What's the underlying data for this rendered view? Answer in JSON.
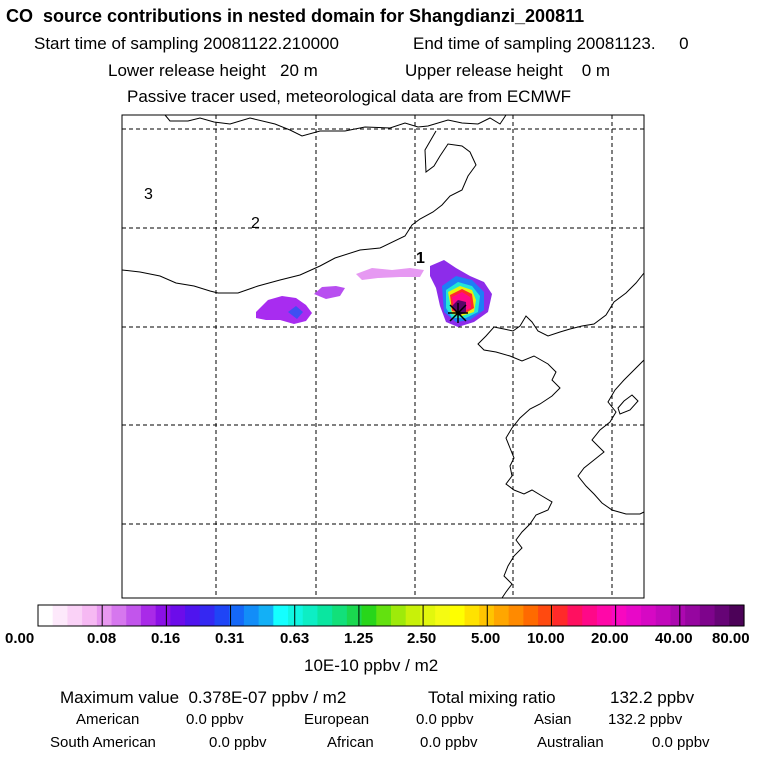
{
  "header": {
    "title": "CO  source contributions in nested domain for Shangdianzi_200811",
    "start_label": "Start time of sampling 20081122.210000",
    "end_label": "End time of sampling 20081123.     0",
    "lower_label": "Lower release height   20 m",
    "upper_label": "Upper release height    0 m",
    "tracer_note": "Passive tracer used, meteorological data are from ECMWF"
  },
  "map": {
    "region_labels": [
      "3",
      "2",
      "1"
    ]
  },
  "colorbar": {
    "tick_labels": [
      "0.00",
      "0.08",
      "0.16",
      "0.31",
      "0.63",
      "1.25",
      "2.50",
      "5.00",
      "10.00",
      "20.00",
      "40.00",
      "80.00"
    ],
    "colors": [
      "#ffffff",
      "#fde9fb",
      "#fad2f7",
      "#f6b9f3",
      "#e898f0",
      "#d677ee",
      "#c255ec",
      "#a92ae8",
      "#8b10e6",
      "#6c0cea",
      "#4f14ee",
      "#3528f2",
      "#1f45f6",
      "#1568f8",
      "#128df8",
      "#13b0f6",
      "#14ffff",
      "#10f6e2",
      "#0deec4",
      "#0ae6a0",
      "#12e07a",
      "#1ad84f",
      "#28d61a",
      "#63e10f",
      "#9eea0a",
      "#c8f109",
      "#e2f70d",
      "#f5fb12",
      "#ffff00",
      "#ffe200",
      "#ffc400",
      "#ffa600",
      "#ff8a00",
      "#ff6a00",
      "#ff4a10",
      "#ff2a2a",
      "#ff1060",
      "#ff0888",
      "#ff08a8",
      "#f808c0",
      "#e808c8",
      "#d608c4",
      "#c208bc",
      "#ac08b0",
      "#9606a0",
      "#7e048c",
      "#660476",
      "#4c0258"
    ],
    "unit": "10E-10 ppbv / m2"
  },
  "summary": {
    "max_label": "Maximum value  0.378E-07 ppbv / m2",
    "total_label": "Total mixing ratio",
    "total_value": "132.2 ppbv",
    "contributions": [
      {
        "name": "American",
        "value": "0.0 ppbv"
      },
      {
        "name": "European",
        "value": "0.0 ppbv"
      },
      {
        "name": "Asian",
        "value": "132.2 ppbv"
      },
      {
        "name": "South American",
        "value": "0.0 ppbv"
      },
      {
        "name": "African",
        "value": "0.0 ppbv"
      },
      {
        "name": "Australian",
        "value": "0.0 ppbv"
      }
    ]
  }
}
